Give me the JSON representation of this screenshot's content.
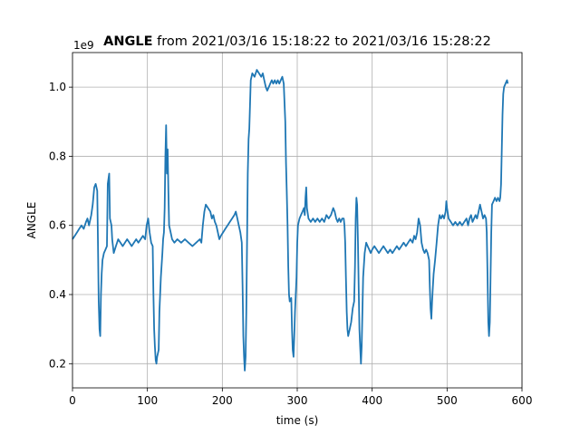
{
  "chart_data": {
    "type": "line",
    "title_bold": "ANGLE",
    "title_rest": " from 2021/03/16 15:18:22 to 2021/03/16 15:28:22",
    "xlabel": "time (s)",
    "ylabel": "ANGLE",
    "offset_label": "1e9",
    "xlim": [
      0,
      600
    ],
    "ylim": [
      0.13,
      1.1
    ],
    "xticks": [
      0,
      100,
      200,
      300,
      400,
      500,
      600
    ],
    "yticks": [
      0.2,
      0.4,
      0.6,
      0.8,
      1.0
    ],
    "xtick_labels": [
      "0",
      "100",
      "200",
      "300",
      "400",
      "500",
      "600"
    ],
    "ytick_labels": [
      "0.2",
      "0.4",
      "0.6",
      "0.8",
      "1.0"
    ],
    "grid": true,
    "series": [
      {
        "color": "#1f77b4",
        "points": [
          [
            0,
            0.56
          ],
          [
            3,
            0.57
          ],
          [
            6,
            0.58
          ],
          [
            9,
            0.59
          ],
          [
            12,
            0.6
          ],
          [
            15,
            0.59
          ],
          [
            18,
            0.61
          ],
          [
            20,
            0.62
          ],
          [
            22,
            0.6
          ],
          [
            25,
            0.63
          ],
          [
            27,
            0.66
          ],
          [
            29,
            0.71
          ],
          [
            31,
            0.72
          ],
          [
            33,
            0.7
          ],
          [
            34,
            0.55
          ],
          [
            35,
            0.38
          ],
          [
            36,
            0.3
          ],
          [
            37,
            0.28
          ],
          [
            38,
            0.4
          ],
          [
            39,
            0.46
          ],
          [
            40,
            0.5
          ],
          [
            42,
            0.52
          ],
          [
            44,
            0.53
          ],
          [
            46,
            0.54
          ],
          [
            47,
            0.72
          ],
          [
            49,
            0.75
          ],
          [
            50,
            0.62
          ],
          [
            52,
            0.6
          ],
          [
            53,
            0.56
          ],
          [
            55,
            0.52
          ],
          [
            58,
            0.54
          ],
          [
            61,
            0.56
          ],
          [
            64,
            0.55
          ],
          [
            67,
            0.54
          ],
          [
            70,
            0.55
          ],
          [
            73,
            0.56
          ],
          [
            76,
            0.55
          ],
          [
            79,
            0.54
          ],
          [
            82,
            0.55
          ],
          [
            85,
            0.56
          ],
          [
            88,
            0.55
          ],
          [
            91,
            0.56
          ],
          [
            94,
            0.57
          ],
          [
            97,
            0.56
          ],
          [
            99,
            0.6
          ],
          [
            101,
            0.62
          ],
          [
            103,
            0.58
          ],
          [
            105,
            0.55
          ],
          [
            107,
            0.54
          ],
          [
            108,
            0.4
          ],
          [
            109,
            0.3
          ],
          [
            110,
            0.25
          ],
          [
            111,
            0.21
          ],
          [
            112,
            0.2
          ],
          [
            113,
            0.22
          ],
          [
            115,
            0.24
          ],
          [
            116,
            0.35
          ],
          [
            118,
            0.45
          ],
          [
            120,
            0.52
          ],
          [
            121,
            0.56
          ],
          [
            122,
            0.58
          ],
          [
            123,
            0.65
          ],
          [
            124,
            0.8
          ],
          [
            125,
            0.89
          ],
          [
            126,
            0.75
          ],
          [
            127,
            0.82
          ],
          [
            128,
            0.7
          ],
          [
            129,
            0.6
          ],
          [
            131,
            0.58
          ],
          [
            133,
            0.56
          ],
          [
            136,
            0.55
          ],
          [
            140,
            0.56
          ],
          [
            145,
            0.55
          ],
          [
            150,
            0.56
          ],
          [
            155,
            0.55
          ],
          [
            160,
            0.54
          ],
          [
            165,
            0.55
          ],
          [
            170,
            0.56
          ],
          [
            172,
            0.55
          ],
          [
            174,
            0.6
          ],
          [
            176,
            0.64
          ],
          [
            178,
            0.66
          ],
          [
            181,
            0.65
          ],
          [
            184,
            0.64
          ],
          [
            186,
            0.62
          ],
          [
            188,
            0.63
          ],
          [
            190,
            0.61
          ],
          [
            192,
            0.6
          ],
          [
            194,
            0.58
          ],
          [
            196,
            0.56
          ],
          [
            198,
            0.57
          ],
          [
            201,
            0.58
          ],
          [
            204,
            0.59
          ],
          [
            207,
            0.6
          ],
          [
            210,
            0.61
          ],
          [
            213,
            0.62
          ],
          [
            216,
            0.63
          ],
          [
            218,
            0.64
          ],
          [
            220,
            0.62
          ],
          [
            222,
            0.6
          ],
          [
            224,
            0.58
          ],
          [
            226,
            0.55
          ],
          [
            227,
            0.42
          ],
          [
            228,
            0.28
          ],
          [
            229,
            0.22
          ],
          [
            230,
            0.18
          ],
          [
            231,
            0.22
          ],
          [
            232,
            0.35
          ],
          [
            233,
            0.55
          ],
          [
            234,
            0.75
          ],
          [
            235,
            0.85
          ],
          [
            236,
            0.88
          ],
          [
            237,
            0.95
          ],
          [
            238,
            1.02
          ],
          [
            240,
            1.04
          ],
          [
            243,
            1.03
          ],
          [
            246,
            1.05
          ],
          [
            249,
            1.04
          ],
          [
            252,
            1.03
          ],
          [
            254,
            1.04
          ],
          [
            256,
            1.02
          ],
          [
            258,
            1.0
          ],
          [
            260,
            0.99
          ],
          [
            262,
            1.0
          ],
          [
            264,
            1.01
          ],
          [
            266,
            1.02
          ],
          [
            268,
            1.01
          ],
          [
            270,
            1.02
          ],
          [
            272,
            1.01
          ],
          [
            274,
            1.02
          ],
          [
            276,
            1.01
          ],
          [
            278,
            1.02
          ],
          [
            280,
            1.03
          ],
          [
            282,
            1.01
          ],
          [
            284,
            0.9
          ],
          [
            285,
            0.78
          ],
          [
            286,
            0.7
          ],
          [
            287,
            0.6
          ],
          [
            288,
            0.48
          ],
          [
            289,
            0.4
          ],
          [
            290,
            0.38
          ],
          [
            292,
            0.39
          ],
          [
            293,
            0.3
          ],
          [
            294,
            0.24
          ],
          [
            295,
            0.22
          ],
          [
            296,
            0.28
          ],
          [
            297,
            0.35
          ],
          [
            299,
            0.45
          ],
          [
            300,
            0.55
          ],
          [
            301,
            0.6
          ],
          [
            303,
            0.62
          ],
          [
            305,
            0.63
          ],
          [
            307,
            0.64
          ],
          [
            309,
            0.65
          ],
          [
            310,
            0.63
          ],
          [
            311,
            0.68
          ],
          [
            312,
            0.71
          ],
          [
            313,
            0.65
          ],
          [
            315,
            0.62
          ],
          [
            318,
            0.61
          ],
          [
            321,
            0.62
          ],
          [
            324,
            0.61
          ],
          [
            327,
            0.62
          ],
          [
            330,
            0.61
          ],
          [
            333,
            0.62
          ],
          [
            336,
            0.61
          ],
          [
            339,
            0.63
          ],
          [
            342,
            0.62
          ],
          [
            345,
            0.63
          ],
          [
            348,
            0.65
          ],
          [
            350,
            0.64
          ],
          [
            352,
            0.62
          ],
          [
            354,
            0.61
          ],
          [
            356,
            0.62
          ],
          [
            358,
            0.61
          ],
          [
            360,
            0.62
          ],
          [
            362,
            0.62
          ],
          [
            363,
            0.6
          ],
          [
            364,
            0.55
          ],
          [
            365,
            0.45
          ],
          [
            366,
            0.35
          ],
          [
            367,
            0.3
          ],
          [
            368,
            0.28
          ],
          [
            370,
            0.3
          ],
          [
            372,
            0.32
          ],
          [
            374,
            0.36
          ],
          [
            376,
            0.38
          ],
          [
            377,
            0.48
          ],
          [
            378,
            0.62
          ],
          [
            379,
            0.68
          ],
          [
            380,
            0.66
          ],
          [
            381,
            0.55
          ],
          [
            382,
            0.42
          ],
          [
            383,
            0.3
          ],
          [
            384,
            0.25
          ],
          [
            385,
            0.2
          ],
          [
            386,
            0.25
          ],
          [
            387,
            0.35
          ],
          [
            388,
            0.45
          ],
          [
            390,
            0.52
          ],
          [
            392,
            0.55
          ],
          [
            394,
            0.54
          ],
          [
            396,
            0.53
          ],
          [
            398,
            0.52
          ],
          [
            400,
            0.53
          ],
          [
            403,
            0.54
          ],
          [
            406,
            0.53
          ],
          [
            409,
            0.52
          ],
          [
            412,
            0.53
          ],
          [
            415,
            0.54
          ],
          [
            418,
            0.53
          ],
          [
            421,
            0.52
          ],
          [
            424,
            0.53
          ],
          [
            427,
            0.52
          ],
          [
            430,
            0.53
          ],
          [
            433,
            0.54
          ],
          [
            436,
            0.53
          ],
          [
            439,
            0.54
          ],
          [
            442,
            0.55
          ],
          [
            445,
            0.54
          ],
          [
            448,
            0.55
          ],
          [
            451,
            0.56
          ],
          [
            454,
            0.55
          ],
          [
            456,
            0.57
          ],
          [
            458,
            0.56
          ],
          [
            460,
            0.58
          ],
          [
            462,
            0.62
          ],
          [
            464,
            0.6
          ],
          [
            466,
            0.55
          ],
          [
            468,
            0.53
          ],
          [
            470,
            0.52
          ],
          [
            472,
            0.53
          ],
          [
            474,
            0.52
          ],
          [
            476,
            0.5
          ],
          [
            477,
            0.42
          ],
          [
            478,
            0.36
          ],
          [
            479,
            0.33
          ],
          [
            480,
            0.38
          ],
          [
            481,
            0.42
          ],
          [
            482,
            0.46
          ],
          [
            484,
            0.5
          ],
          [
            486,
            0.55
          ],
          [
            488,
            0.6
          ],
          [
            490,
            0.63
          ],
          [
            492,
            0.62
          ],
          [
            494,
            0.63
          ],
          [
            496,
            0.62
          ],
          [
            498,
            0.64
          ],
          [
            499,
            0.67
          ],
          [
            500,
            0.65
          ],
          [
            502,
            0.62
          ],
          [
            505,
            0.61
          ],
          [
            508,
            0.6
          ],
          [
            511,
            0.61
          ],
          [
            514,
            0.6
          ],
          [
            517,
            0.61
          ],
          [
            520,
            0.6
          ],
          [
            523,
            0.61
          ],
          [
            526,
            0.62
          ],
          [
            528,
            0.6
          ],
          [
            530,
            0.62
          ],
          [
            532,
            0.63
          ],
          [
            534,
            0.61
          ],
          [
            536,
            0.62
          ],
          [
            538,
            0.63
          ],
          [
            540,
            0.62
          ],
          [
            542,
            0.64
          ],
          [
            544,
            0.66
          ],
          [
            546,
            0.64
          ],
          [
            548,
            0.62
          ],
          [
            550,
            0.63
          ],
          [
            552,
            0.62
          ],
          [
            553,
            0.58
          ],
          [
            554,
            0.45
          ],
          [
            555,
            0.32
          ],
          [
            556,
            0.28
          ],
          [
            557,
            0.32
          ],
          [
            558,
            0.45
          ],
          [
            559,
            0.58
          ],
          [
            560,
            0.66
          ],
          [
            562,
            0.67
          ],
          [
            564,
            0.68
          ],
          [
            566,
            0.67
          ],
          [
            568,
            0.68
          ],
          [
            570,
            0.67
          ],
          [
            571,
            0.68
          ],
          [
            572,
            0.72
          ],
          [
            573,
            0.82
          ],
          [
            574,
            0.92
          ],
          [
            575,
            0.98
          ],
          [
            576,
            1.0
          ],
          [
            578,
            1.01
          ],
          [
            580,
            1.02
          ],
          [
            581,
            1.01
          ]
        ]
      }
    ]
  }
}
